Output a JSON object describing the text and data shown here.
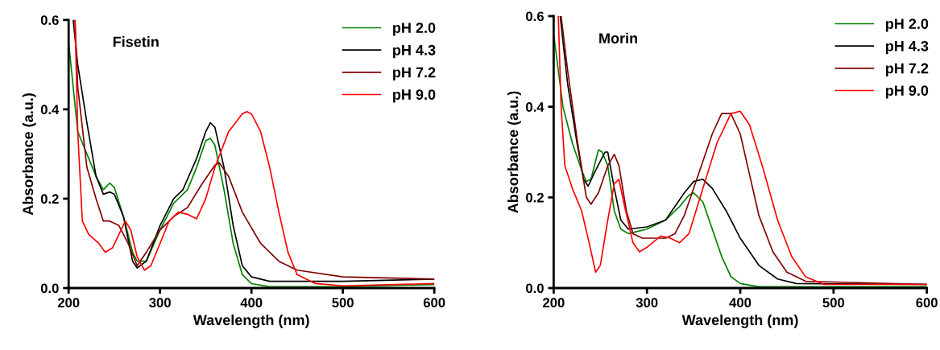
{
  "chart_data": [
    {
      "type": "line",
      "title": "Fisetin",
      "xlabel": "Wavelength (nm)",
      "ylabel": "Absorbance (a.u.)",
      "xlim": [
        200,
        600
      ],
      "ylim": [
        0,
        0.6
      ],
      "xticks": [
        200,
        300,
        400,
        500,
        600
      ],
      "yticks": [
        {
          "value": 0,
          "label": "0.0"
        },
        {
          "value": 0.2,
          "label": "0.2"
        },
        {
          "value": 0.4,
          "label": "0.4"
        },
        {
          "value": 0.6,
          "label": "0.6"
        }
      ],
      "grid": false,
      "legend": "top right",
      "marker": "none",
      "line_style": "solid",
      "series": [
        {
          "name": "pH 2.0",
          "color": "#008000",
          "x": [
            200,
            205,
            210,
            220,
            230,
            238,
            245,
            250,
            260,
            270,
            275,
            285,
            300,
            315,
            330,
            340,
            350,
            355,
            360,
            370,
            380,
            390,
            400,
            420,
            500,
            600
          ],
          "values": [
            0.55,
            0.45,
            0.35,
            0.3,
            0.25,
            0.22,
            0.235,
            0.225,
            0.16,
            0.08,
            0.06,
            0.06,
            0.13,
            0.19,
            0.22,
            0.27,
            0.33,
            0.335,
            0.32,
            0.22,
            0.1,
            0.03,
            0.01,
            0.003,
            0.003,
            0.008
          ]
        },
        {
          "name": "pH 4.3",
          "color": "#000000",
          "x": [
            205,
            210,
            220,
            230,
            238,
            245,
            250,
            260,
            270,
            275,
            285,
            300,
            315,
            325,
            340,
            350,
            355,
            360,
            370,
            380,
            390,
            400,
            420,
            500,
            600
          ],
          "values": [
            0.6,
            0.5,
            0.37,
            0.25,
            0.21,
            0.215,
            0.21,
            0.16,
            0.06,
            0.045,
            0.06,
            0.14,
            0.2,
            0.22,
            0.29,
            0.35,
            0.37,
            0.36,
            0.27,
            0.14,
            0.05,
            0.025,
            0.015,
            0.015,
            0.02
          ]
        },
        {
          "name": "pH 7.2",
          "color": "#800000",
          "x": [
            207,
            210,
            220,
            230,
            238,
            245,
            255,
            265,
            275,
            285,
            300,
            315,
            330,
            345,
            360,
            365,
            375,
            390,
            410,
            430,
            450,
            500,
            600
          ],
          "values": [
            0.6,
            0.45,
            0.27,
            0.2,
            0.15,
            0.15,
            0.14,
            0.1,
            0.05,
            0.08,
            0.13,
            0.16,
            0.18,
            0.23,
            0.275,
            0.28,
            0.25,
            0.17,
            0.1,
            0.06,
            0.04,
            0.025,
            0.02
          ]
        },
        {
          "name": "pH 9.0",
          "color": "#ff0000",
          "x": [
            207,
            210,
            215,
            222,
            233,
            240,
            248,
            255,
            262,
            268,
            275,
            283,
            290,
            300,
            310,
            320,
            330,
            340,
            350,
            360,
            375,
            390,
            395,
            400,
            410,
            420,
            430,
            440,
            450,
            470,
            500,
            600
          ],
          "values": [
            0.6,
            0.35,
            0.15,
            0.12,
            0.1,
            0.08,
            0.09,
            0.12,
            0.15,
            0.13,
            0.07,
            0.04,
            0.05,
            0.1,
            0.15,
            0.17,
            0.165,
            0.155,
            0.2,
            0.27,
            0.35,
            0.39,
            0.395,
            0.39,
            0.35,
            0.27,
            0.17,
            0.08,
            0.03,
            0.01,
            0.005,
            0.01
          ]
        }
      ]
    },
    {
      "type": "line",
      "title": "Morin",
      "xlabel": "Wavelength (nm)",
      "ylabel": "Absorbance (a.u.)",
      "xlim": [
        200,
        600
      ],
      "ylim": [
        0,
        0.6
      ],
      "xticks": [
        200,
        300,
        400,
        500,
        600
      ],
      "yticks": [
        {
          "value": 0,
          "label": "0.0"
        },
        {
          "value": 0.2,
          "label": "0.2"
        },
        {
          "value": 0.4,
          "label": "0.4"
        },
        {
          "value": 0.6,
          "label": "0.6"
        }
      ],
      "grid": false,
      "legend": "top right",
      "marker": "none",
      "line_style": "solid",
      "series": [
        {
          "name": "pH 2.0",
          "color": "#008000",
          "x": [
            200,
            210,
            220,
            230,
            235,
            240,
            248,
            252,
            258,
            265,
            272,
            280,
            300,
            320,
            335,
            345,
            350,
            360,
            370,
            380,
            390,
            400,
            420,
            600
          ],
          "values": [
            0.56,
            0.4,
            0.32,
            0.26,
            0.235,
            0.24,
            0.305,
            0.3,
            0.27,
            0.17,
            0.13,
            0.12,
            0.13,
            0.15,
            0.18,
            0.205,
            0.21,
            0.19,
            0.13,
            0.07,
            0.025,
            0.01,
            0.003,
            0.003
          ]
        },
        {
          "name": "pH 4.3",
          "color": "#000000",
          "x": [
            207,
            215,
            225,
            232,
            237,
            245,
            255,
            258,
            265,
            272,
            280,
            300,
            320,
            340,
            350,
            360,
            370,
            385,
            400,
            420,
            440,
            460,
            600
          ],
          "values": [
            0.6,
            0.45,
            0.32,
            0.24,
            0.225,
            0.26,
            0.3,
            0.3,
            0.22,
            0.15,
            0.13,
            0.135,
            0.15,
            0.21,
            0.235,
            0.24,
            0.22,
            0.17,
            0.11,
            0.05,
            0.02,
            0.01,
            0.008
          ]
        },
        {
          "name": "pH 7.2",
          "color": "#800000",
          "x": [
            208,
            215,
            225,
            235,
            240,
            248,
            258,
            265,
            270,
            278,
            285,
            295,
            320,
            330,
            340,
            355,
            370,
            380,
            390,
            400,
            410,
            420,
            435,
            450,
            470,
            600
          ],
          "values": [
            0.6,
            0.48,
            0.33,
            0.2,
            0.185,
            0.21,
            0.27,
            0.295,
            0.27,
            0.17,
            0.12,
            0.11,
            0.11,
            0.12,
            0.16,
            0.25,
            0.34,
            0.385,
            0.385,
            0.34,
            0.25,
            0.16,
            0.08,
            0.035,
            0.015,
            0.008
          ]
        },
        {
          "name": "pH 9.0",
          "color": "#ff0000",
          "x": [
            205,
            208,
            212,
            220,
            230,
            238,
            245,
            250,
            258,
            265,
            270,
            275,
            285,
            292,
            300,
            315,
            325,
            335,
            345,
            360,
            375,
            390,
            400,
            410,
            425,
            440,
            455,
            470,
            490,
            600
          ],
          "values": [
            0.6,
            0.4,
            0.27,
            0.22,
            0.17,
            0.1,
            0.035,
            0.05,
            0.15,
            0.23,
            0.24,
            0.19,
            0.1,
            0.08,
            0.09,
            0.115,
            0.11,
            0.1,
            0.12,
            0.22,
            0.32,
            0.385,
            0.39,
            0.36,
            0.26,
            0.15,
            0.07,
            0.025,
            0.008,
            0.008
          ]
        }
      ]
    }
  ]
}
